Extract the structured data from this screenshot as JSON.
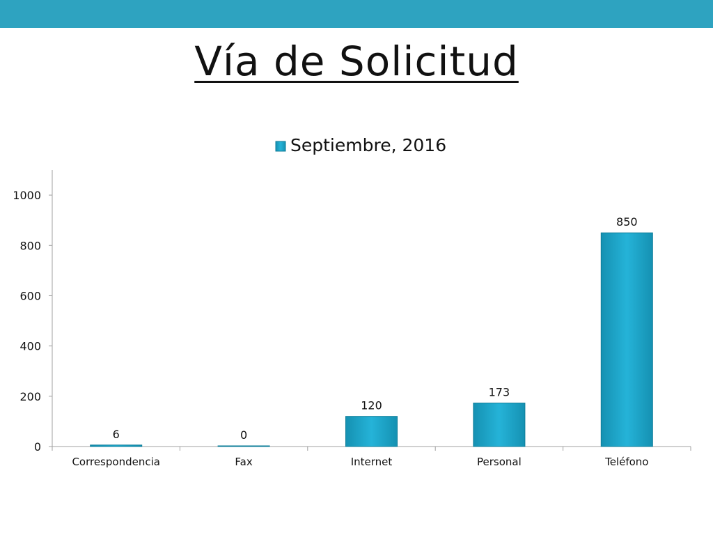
{
  "slide": {
    "title": "Vía de Solicitud",
    "bar_color": "#2ea3c0"
  },
  "chart_data": {
    "type": "bar",
    "categories": [
      "Correspondencia",
      "Fax",
      "Internet",
      "Personal",
      "Teléfono"
    ],
    "series": [
      {
        "name": "Septiembre, 2016",
        "values": [
          6,
          0,
          120,
          173,
          850
        ]
      }
    ],
    "ylim": [
      0,
      1100
    ],
    "yticks": [
      0,
      200,
      400,
      600,
      800,
      1000
    ],
    "legend_position": "top",
    "grid": false,
    "bar_color": "#1fa6c8"
  }
}
